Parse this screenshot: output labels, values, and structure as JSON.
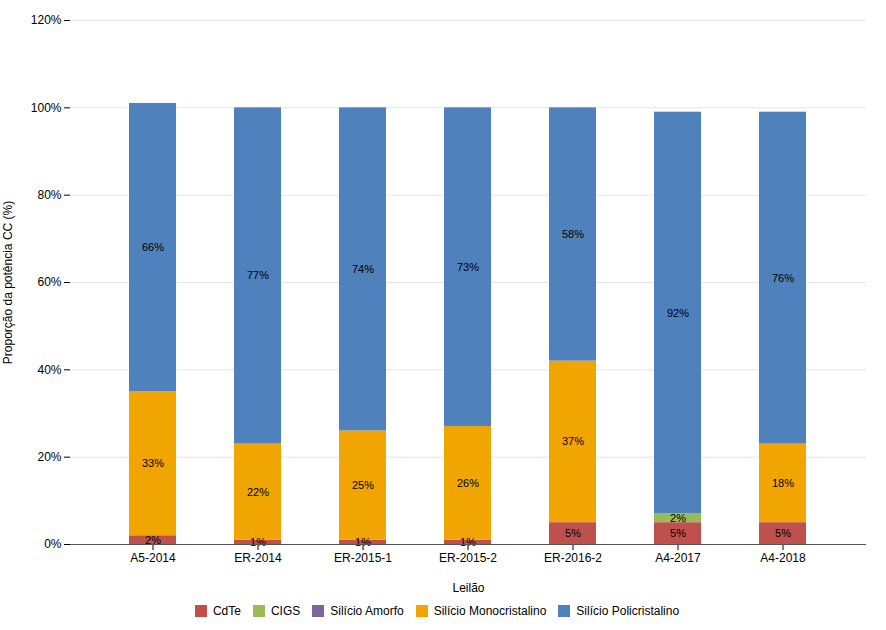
{
  "chart_data": {
    "type": "bar",
    "stacked": true,
    "xlabel": "Leilão",
    "ylabel": "Proporção da potência CC (%)",
    "categories": [
      "A5-2014",
      "ER-2014",
      "ER-2015-1",
      "ER-2015-2",
      "ER-2016-2",
      "A4-2017",
      "A4-2018"
    ],
    "series": [
      {
        "name": "CdTe",
        "color": "#C0504D",
        "values": [
          2,
          1,
          1,
          1,
          5,
          5,
          5
        ],
        "value_labels": [
          "2%",
          "1%",
          "1%",
          "1%",
          "5%",
          "5%",
          "5%"
        ]
      },
      {
        "name": "CIGS",
        "color": "#9BBB59",
        "values": [
          0,
          0,
          0,
          0,
          0,
          2,
          0
        ],
        "value_labels": [
          null,
          null,
          null,
          null,
          null,
          "2%",
          null
        ]
      },
      {
        "name": "Silício Amorfo",
        "color": "#8064A2",
        "values": [
          0,
          0,
          0,
          0,
          0,
          0,
          0
        ],
        "value_labels": [
          null,
          null,
          null,
          null,
          null,
          null,
          null
        ]
      },
      {
        "name": "Silício Monocristalino",
        "color": "#F0A500",
        "values": [
          33,
          22,
          25,
          26,
          37,
          0,
          18
        ],
        "value_labels": [
          "33%",
          "22%",
          "25%",
          "26%",
          "37%",
          null,
          "18%"
        ]
      },
      {
        "name": "Silício Policristalino",
        "color": "#4F81BD",
        "values": [
          66,
          77,
          74,
          73,
          58,
          92,
          76
        ],
        "value_labels": [
          "66%",
          "77%",
          "74%",
          "73%",
          "58%",
          "92%",
          "76%"
        ]
      }
    ],
    "ylim": [
      0,
      120
    ],
    "yticks": [
      {
        "value": 0,
        "label": "0%"
      },
      {
        "value": 20,
        "label": "20%"
      },
      {
        "value": 40,
        "label": "40%"
      },
      {
        "value": 60,
        "label": "60%"
      },
      {
        "value": 80,
        "label": "80%"
      },
      {
        "value": 100,
        "label": "100%"
      },
      {
        "value": 120,
        "label": "120%"
      }
    ],
    "grid": true,
    "data_labels": true,
    "legend": "bottom"
  }
}
